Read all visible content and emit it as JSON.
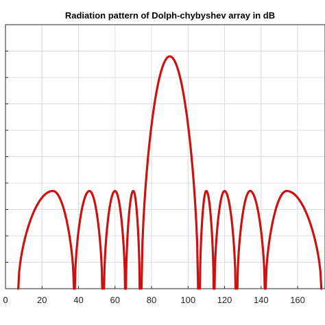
{
  "chart_data": {
    "type": "line",
    "title": "Radiation pattern of Dolph-chybyshev array in dB",
    "xlabel": "",
    "ylabel": "",
    "xlim": [
      0,
      175
    ],
    "ylim": [
      0,
      1
    ],
    "grid": true,
    "x_ticks": [
      0,
      20,
      40,
      60,
      80,
      100,
      120,
      140,
      160
    ],
    "x_tick_labels": [
      "0",
      "20",
      "40",
      "60",
      "80",
      "100",
      "120",
      "140",
      "160"
    ],
    "y_ticks": [
      0.1,
      0.2,
      0.3,
      0.4,
      0.5,
      0.6,
      0.7,
      0.8,
      0.9,
      1.0
    ],
    "series": [
      {
        "color": "#cc1111",
        "lobes": [
          {
            "x_start": 7,
            "x_end": 37.5,
            "peak_x": 26,
            "peak": 0.37
          },
          {
            "x_start": 38,
            "x_end": 53,
            "peak_x": 46,
            "peak": 0.37
          },
          {
            "x_start": 54,
            "x_end": 65.5,
            "peak_x": 60,
            "peak": 0.37
          },
          {
            "x_start": 66,
            "x_end": 73.5,
            "peak_x": 70,
            "peak": 0.37
          },
          {
            "x_start": 74.5,
            "x_end": 105.5,
            "peak_x": 90,
            "peak": 0.88
          },
          {
            "x_start": 106.5,
            "x_end": 114,
            "peak_x": 110,
            "peak": 0.37
          },
          {
            "x_start": 114.5,
            "x_end": 126,
            "peak_x": 120,
            "peak": 0.37
          },
          {
            "x_start": 127,
            "x_end": 142,
            "peak_x": 134,
            "peak": 0.37
          },
          {
            "x_start": 142.5,
            "x_end": 173,
            "peak_x": 154,
            "peak": 0.37
          }
        ]
      }
    ]
  }
}
